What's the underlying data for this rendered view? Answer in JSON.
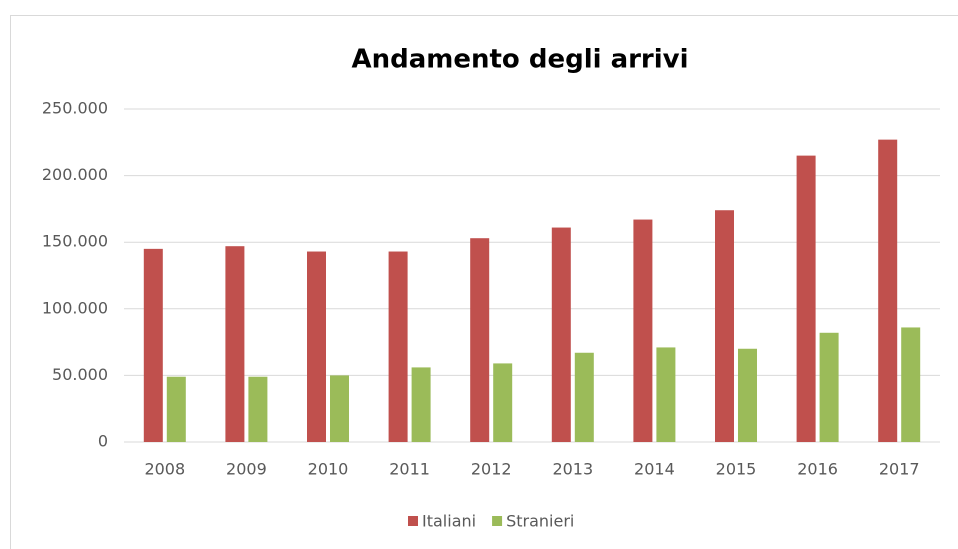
{
  "chart_data": {
    "type": "bar",
    "title": "Andamento degli arrivi",
    "categories": [
      "2008",
      "2009",
      "2010",
      "2011",
      "2012",
      "2013",
      "2014",
      "2015",
      "2016",
      "2017"
    ],
    "series": [
      {
        "name": "Italiani",
        "color": "#c0504d",
        "values": [
          145000,
          147000,
          143000,
          143000,
          153000,
          161000,
          167000,
          174000,
          215000,
          227000
        ]
      },
      {
        "name": "Stranieri",
        "color": "#9bbb59",
        "values": [
          49000,
          49000,
          50000,
          56000,
          59000,
          67000,
          71000,
          70000,
          82000,
          86000
        ]
      }
    ],
    "ylim": [
      0,
      250000
    ],
    "yticks": [
      0,
      {
        "value": 50000,
        "label": "50.000"
      },
      {
        "value": 100000,
        "label": "100.000"
      },
      {
        "value": 150000,
        "label": "150.000"
      },
      {
        "value": 200000,
        "label": "200.000"
      },
      {
        "value": 250000,
        "label": "250.000"
      }
    ],
    "grid": true,
    "legend": "bottom"
  }
}
